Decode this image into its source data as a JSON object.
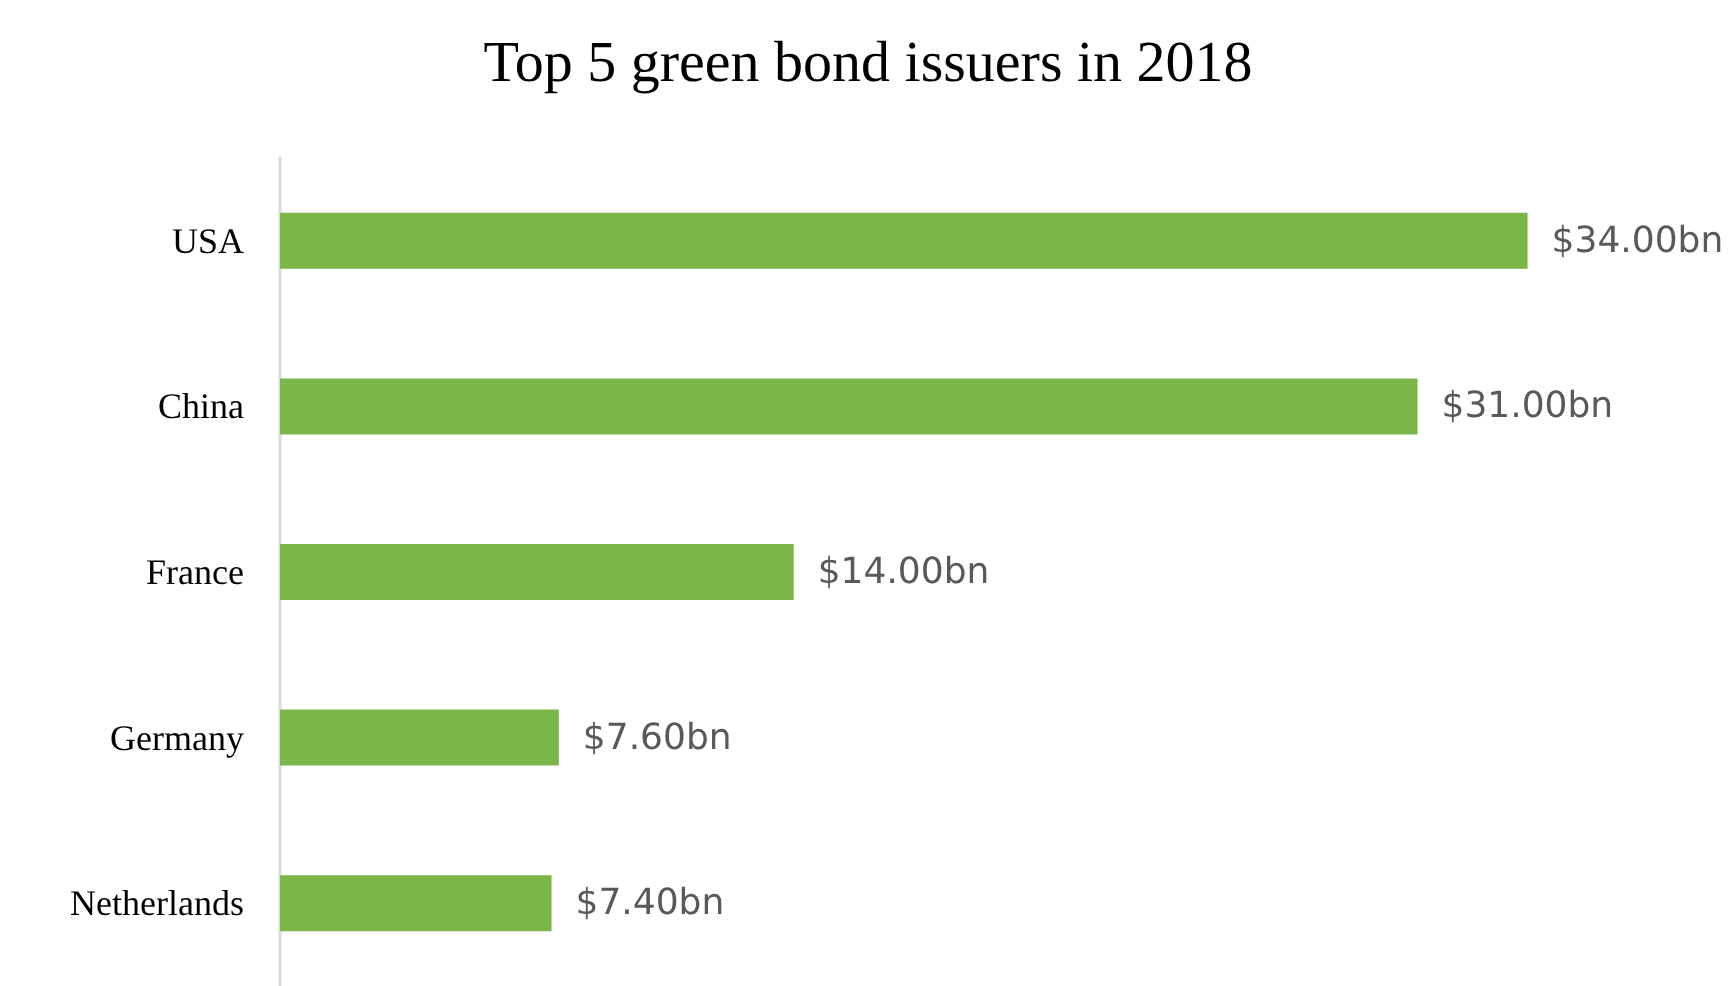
{
  "chart_data": {
    "type": "bar",
    "orientation": "horizontal",
    "title": "Top 5 green bond issuers in 2018",
    "categories": [
      "USA",
      "China",
      "France",
      "Germany",
      "Netherlands"
    ],
    "values": [
      34,
      31,
      14,
      7.6,
      7.4
    ],
    "value_labels": [
      "$34.00bn",
      "$31.00bn",
      "$14.00bn",
      "$7.60bn",
      "$7.40bn"
    ],
    "color": "#7ab648"
  }
}
